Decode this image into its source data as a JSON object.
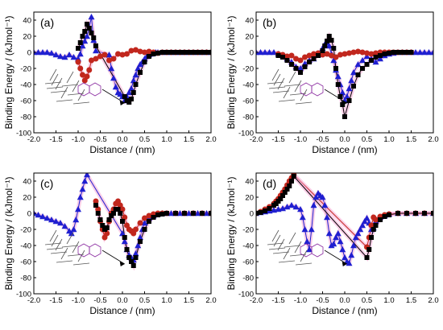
{
  "chart_data": [
    {
      "type": "scatter",
      "panel_label": "(a)",
      "xlabel": "Distance / (nm)",
      "ylabel": "Binding Energy / (kJmol⁻¹)",
      "xlim": [
        -2.0,
        2.0
      ],
      "ylim": [
        -100,
        50
      ],
      "xticks": [
        "-2.0",
        "-1.5",
        "-1.0",
        "-0.5",
        "0.0",
        "0.5",
        "1.0",
        "1.5",
        "2.0"
      ],
      "yticks": [
        "40",
        "20",
        "0",
        "-20",
        "-40",
        "-60",
        "-80",
        "-100"
      ],
      "grid": false,
      "series": [
        {
          "color": "#1f1fd0",
          "marker": "triangle",
          "x": [
            -2.0,
            -1.9,
            -1.8,
            -1.7,
            -1.6,
            -1.5,
            -1.4,
            -1.3,
            -1.2,
            -1.1,
            -1.0,
            -0.95,
            -0.9,
            -0.85,
            -0.8,
            -0.75,
            -0.7,
            -0.65,
            -0.6,
            -0.3,
            -0.25,
            -0.2,
            -0.15,
            -0.1,
            -0.05,
            0.0,
            0.05,
            0.1,
            0.15,
            0.2,
            0.25,
            0.3,
            0.35,
            0.4,
            0.45,
            0.5,
            0.55,
            0.6,
            0.65,
            0.7,
            0.75,
            0.8,
            0.9,
            1.0,
            1.1,
            1.2,
            1.3,
            1.4,
            1.5,
            1.6,
            1.7,
            1.8,
            1.9,
            2.0
          ],
          "y": [
            0,
            0,
            0,
            0,
            -1,
            -3,
            -5,
            -6,
            -3,
            -6,
            -8,
            -2,
            8,
            14,
            20,
            30,
            44,
            15,
            2,
            -3,
            -20,
            -32,
            -43,
            -50,
            -52,
            -55,
            -60,
            -55,
            -50,
            -45,
            -35,
            -28,
            -20,
            -15,
            -12,
            -8,
            -5,
            -3,
            -2,
            -1,
            0,
            0,
            0,
            0,
            0,
            0,
            0,
            0,
            0,
            0,
            0,
            0,
            0,
            0
          ]
        },
        {
          "color": "#c1271d",
          "marker": "circle",
          "x": [
            -1.0,
            -0.95,
            -0.9,
            -0.85,
            -0.8,
            -0.75,
            -0.7,
            -0.6,
            -0.5,
            -0.4,
            -0.3,
            -0.2,
            -0.1,
            0.0,
            0.1,
            0.2,
            0.3,
            0.4,
            0.5,
            0.6,
            0.7,
            0.8,
            0.9,
            1.0,
            1.1,
            1.2,
            1.3,
            1.4,
            1.5,
            1.6,
            1.7,
            1.8,
            1.9,
            2.0
          ],
          "y": [
            -12,
            -20,
            -28,
            -35,
            -30,
            -22,
            -10,
            -8,
            -5,
            -3,
            -10,
            -8,
            -2,
            -3,
            -2,
            2,
            3,
            1,
            0,
            1,
            0,
            -1,
            0,
            0,
            0,
            0,
            0,
            0,
            0,
            0,
            0,
            0,
            0,
            0
          ]
        },
        {
          "color": "#000000",
          "marker": "square",
          "x": [
            -1.0,
            -0.95,
            -0.9,
            -0.85,
            -0.8,
            -0.75,
            -0.7,
            -0.65,
            -0.6,
            0.05,
            0.1,
            0.15,
            0.2,
            0.25,
            0.3,
            0.4,
            0.5,
            0.6,
            0.7,
            0.8,
            0.9,
            1.0,
            1.1,
            1.2,
            1.3,
            1.4,
            1.5,
            1.6,
            1.7,
            1.8,
            1.9,
            2.0
          ],
          "y": [
            5,
            12,
            20,
            26,
            35,
            30,
            24,
            18,
            8,
            -55,
            -60,
            -62,
            -58,
            -50,
            -40,
            -25,
            -12,
            -5,
            -2,
            -1,
            0,
            0,
            0,
            0,
            0,
            0,
            0,
            0,
            0,
            0,
            0,
            0
          ]
        }
      ]
    },
    {
      "type": "scatter",
      "panel_label": "(b)",
      "xlabel": "Distance / (nm)",
      "ylabel": "Binding Energy / (kJmol⁻¹)",
      "xlim": [
        -2.0,
        2.0
      ],
      "ylim": [
        -100,
        50
      ],
      "xticks": [
        "-2.0",
        "-1.5",
        "-1.0",
        "-0.5",
        "0.0",
        "0.5",
        "1.0",
        "1.5",
        "2.0"
      ],
      "yticks": [
        "40",
        "20",
        "0",
        "-20",
        "-40",
        "-60",
        "-80",
        "-100"
      ],
      "grid": false,
      "series": [
        {
          "color": "#1f1fd0",
          "marker": "triangle",
          "x": [
            -2.0,
            -1.9,
            -1.8,
            -1.7,
            -1.6,
            -1.5,
            -1.4,
            -1.3,
            -1.2,
            -1.1,
            -1.0,
            -0.9,
            -0.8,
            -0.7,
            -0.6,
            -0.5,
            -0.45,
            -0.4,
            -0.35,
            -0.3,
            -0.25,
            -0.2,
            -0.15,
            -0.1,
            -0.05,
            0.0,
            0.05,
            0.1,
            0.15,
            0.2,
            0.3,
            0.4,
            0.5,
            0.6,
            0.7,
            0.8,
            0.9,
            1.0,
            1.1,
            1.2,
            1.3,
            1.4,
            1.5,
            1.6,
            1.7,
            1.8,
            1.9,
            2.0
          ],
          "y": [
            0,
            0,
            0,
            0,
            0,
            -2,
            -4,
            -8,
            -12,
            -18,
            -20,
            -14,
            -10,
            -8,
            -3,
            5,
            10,
            12,
            8,
            -2,
            -10,
            -22,
            -30,
            -40,
            -50,
            -60,
            -55,
            -45,
            -35,
            -25,
            -15,
            -10,
            -5,
            -8,
            -12,
            -8,
            -4,
            -2,
            -1,
            0,
            0,
            0,
            0,
            0,
            0,
            0,
            0,
            0
          ]
        },
        {
          "color": "#c1271d",
          "marker": "circle",
          "x": [
            -1.5,
            -1.4,
            -1.3,
            -1.2,
            -1.1,
            -1.0,
            -0.9,
            -0.8,
            -0.7,
            -0.6,
            -0.5,
            -0.4,
            -0.3,
            -0.2,
            -0.1,
            0.0,
            0.1,
            0.2,
            0.3,
            0.4,
            0.5,
            0.6,
            0.7,
            0.8,
            0.9,
            1.0,
            1.1,
            1.2,
            1.3,
            1.4,
            1.5
          ],
          "y": [
            -2,
            -3,
            -5,
            -4,
            -8,
            -10,
            -6,
            -4,
            -2,
            -1,
            -3,
            -2,
            -4,
            -6,
            -3,
            -2,
            -1,
            0,
            1,
            0,
            -1,
            -2,
            -1,
            0,
            0,
            0,
            0,
            0,
            0,
            0,
            0
          ]
        },
        {
          "color": "#000000",
          "marker": "square",
          "x": [
            -1.5,
            -1.4,
            -1.3,
            -1.2,
            -1.1,
            -1.0,
            -0.9,
            -0.8,
            -0.7,
            -0.6,
            -0.5,
            -0.45,
            -0.4,
            -0.35,
            -0.3,
            -0.25,
            -0.2,
            -0.15,
            -0.1,
            -0.05,
            0.0,
            0.1,
            0.2,
            0.3,
            0.4,
            0.5,
            0.6,
            0.7,
            0.8,
            0.9,
            1.0,
            1.1,
            1.2,
            1.3,
            1.4,
            1.5
          ],
          "y": [
            -4,
            -6,
            -10,
            -15,
            -20,
            -25,
            -18,
            -12,
            -8,
            -4,
            2,
            8,
            14,
            20,
            15,
            5,
            -20,
            -40,
            -55,
            -65,
            -80,
            -60,
            -42,
            -28,
            -20,
            -15,
            -10,
            -6,
            -4,
            -2,
            -1,
            0,
            0,
            0,
            0,
            0
          ]
        }
      ]
    },
    {
      "type": "scatter",
      "panel_label": "(c)",
      "xlabel": "Distance / (nm)",
      "ylabel": "Binding Energy / (kJmol⁻¹)",
      "xlim": [
        -2.0,
        2.0
      ],
      "ylim": [
        -100,
        50
      ],
      "xticks": [
        "-2.0",
        "-1.5",
        "-1.0",
        "-0.5",
        "0.0",
        "0.5",
        "1.0",
        "1.5",
        "2.0"
      ],
      "yticks": [
        "40",
        "20",
        "0",
        "-20",
        "-40",
        "-60",
        "-80",
        "-100"
      ],
      "grid": false,
      "series": [
        {
          "color": "#1f1fd0",
          "marker": "triangle",
          "x": [
            -2.0,
            -1.9,
            -1.8,
            -1.7,
            -1.6,
            -1.5,
            -1.4,
            -1.3,
            -1.2,
            -1.15,
            -1.1,
            -1.05,
            -1.0,
            -0.95,
            -0.9,
            -0.85,
            -0.8,
            0.0,
            0.05,
            0.1,
            0.15,
            0.2,
            0.25,
            0.3,
            0.35,
            0.4,
            0.45,
            0.5,
            0.6,
            0.7,
            0.8,
            0.9,
            1.0,
            1.1,
            1.2,
            1.3,
            1.4,
            1.5,
            1.6,
            1.7,
            1.8,
            1.9,
            2.0
          ],
          "y": [
            0,
            -2,
            -4,
            -6,
            -8,
            -10,
            -12,
            -16,
            -22,
            -25,
            -20,
            -8,
            5,
            20,
            30,
            40,
            48,
            -25,
            -35,
            -45,
            -52,
            -55,
            -58,
            -50,
            -40,
            -30,
            -20,
            -12,
            -6,
            -3,
            -1,
            0,
            0,
            0,
            0,
            0,
            0,
            0,
            0,
            0,
            0,
            0,
            0
          ]
        },
        {
          "color": "#c1271d",
          "marker": "circle",
          "x": [
            -0.6,
            -0.55,
            -0.5,
            -0.45,
            -0.4,
            -0.35,
            -0.3,
            -0.25,
            -0.2,
            -0.15,
            -0.1,
            -0.05,
            0.0,
            0.05,
            0.1,
            0.15,
            0.2,
            0.25,
            0.3,
            0.4,
            0.5,
            0.6,
            0.7,
            0.8,
            0.9,
            1.0,
            1.2,
            1.4,
            1.6,
            1.8,
            2.0
          ],
          "y": [
            15,
            5,
            -10,
            -20,
            -30,
            -25,
            -10,
            0,
            5,
            12,
            15,
            10,
            5,
            -5,
            -15,
            -20,
            -22,
            -25,
            -20,
            -12,
            -6,
            -3,
            -1,
            0,
            0,
            0,
            0,
            0,
            0,
            0,
            0
          ]
        },
        {
          "color": "#000000",
          "marker": "square",
          "x": [
            -0.6,
            -0.55,
            -0.5,
            -0.45,
            -0.4,
            -0.35,
            -0.3,
            -0.25,
            -0.2,
            -0.15,
            -0.1,
            -0.05,
            0.0,
            0.05,
            0.1,
            0.15,
            0.2,
            0.25,
            0.3,
            0.4,
            0.5,
            0.6,
            0.7,
            0.8,
            0.9,
            1.0,
            1.2,
            1.4,
            1.6,
            1.8,
            2.0
          ],
          "y": [
            10,
            0,
            -8,
            -15,
            -20,
            -18,
            -8,
            -3,
            0,
            5,
            5,
            0,
            -10,
            -30,
            -45,
            -55,
            -60,
            -65,
            -55,
            -35,
            -20,
            -10,
            -5,
            -2,
            -1,
            0,
            0,
            0,
            0,
            0,
            0
          ]
        }
      ]
    },
    {
      "type": "scatter",
      "panel_label": "(d)",
      "xlabel": "Distance / (nm)",
      "ylabel": "Binding Energy / (kJmol⁻¹)",
      "xlim": [
        -2.0,
        2.0
      ],
      "ylim": [
        -100,
        50
      ],
      "xticks": [
        "-2.0",
        "-1.5",
        "-1.0",
        "-0.5",
        "0.0",
        "0.5",
        "1.0",
        "1.5",
        "2.0"
      ],
      "yticks": [
        "40",
        "20",
        "0",
        "-20",
        "-40",
        "-60",
        "-80",
        "-100"
      ],
      "grid": false,
      "series": [
        {
          "color": "#1f1fd0",
          "marker": "triangle",
          "x": [
            -2.0,
            -1.9,
            -1.8,
            -1.7,
            -1.6,
            -1.5,
            -1.4,
            -1.3,
            -1.2,
            -1.1,
            -1.0,
            -0.95,
            -0.9,
            -0.85,
            -0.8,
            -0.75,
            -0.7,
            -0.65,
            -0.6,
            -0.55,
            -0.5,
            -0.45,
            -0.4,
            -0.35,
            -0.3,
            -0.25,
            -0.2,
            -0.15,
            -0.1,
            -0.05,
            0.0,
            0.05,
            0.1,
            0.15,
            0.2,
            0.25,
            0.3,
            0.35,
            0.4,
            0.45,
            0.5,
            0.55,
            0.6,
            0.65,
            0.7,
            0.8,
            0.9,
            1.0,
            1.2,
            1.4,
            1.6,
            1.8,
            2.0
          ],
          "y": [
            0,
            1,
            2,
            3,
            4,
            5,
            6,
            8,
            10,
            8,
            5,
            -5,
            -20,
            -35,
            -45,
            -20,
            10,
            20,
            25,
            22,
            20,
            10,
            -5,
            -25,
            -40,
            -38,
            -30,
            -25,
            -35,
            -45,
            -55,
            -60,
            -62,
            -52,
            -40,
            -30,
            -25,
            -20,
            -15,
            -10,
            -6,
            -12,
            -20,
            -18,
            -10,
            -5,
            -3,
            -1,
            0,
            0,
            0,
            0,
            0
          ]
        },
        {
          "color": "#c1271d",
          "marker": "circle",
          "x": [
            -2.0,
            -1.9,
            -1.8,
            -1.7,
            -1.6,
            -1.55,
            -1.5,
            -1.45,
            -1.4,
            -1.35,
            -1.3,
            -1.25,
            -1.2,
            -1.15,
            0.5,
            0.55,
            0.6,
            0.65,
            0.7,
            0.8,
            0.9,
            1.0,
            1.2,
            1.4,
            1.6,
            1.8,
            2.0
          ],
          "y": [
            0,
            2,
            5,
            8,
            12,
            15,
            18,
            22,
            26,
            30,
            35,
            40,
            44,
            48,
            -42,
            -30,
            -15,
            -5,
            -8,
            -4,
            -2,
            -1,
            0,
            0,
            0,
            0,
            0
          ]
        },
        {
          "color": "#000000",
          "marker": "square",
          "x": [
            -2.0,
            -1.9,
            -1.8,
            -1.7,
            -1.6,
            -1.55,
            -1.5,
            -1.45,
            -1.4,
            -1.35,
            -1.3,
            -1.25,
            -1.2,
            -1.15,
            0.5,
            0.55,
            0.6,
            0.65,
            0.7,
            0.8,
            0.9,
            1.0,
            1.2,
            1.4,
            1.6,
            1.8,
            2.0
          ],
          "y": [
            0,
            1,
            3,
            6,
            10,
            12,
            15,
            18,
            22,
            26,
            30,
            34,
            40,
            46,
            -55,
            -45,
            -30,
            -20,
            -15,
            -8,
            -4,
            -2,
            0,
            0,
            0,
            0,
            0
          ]
        }
      ]
    }
  ]
}
